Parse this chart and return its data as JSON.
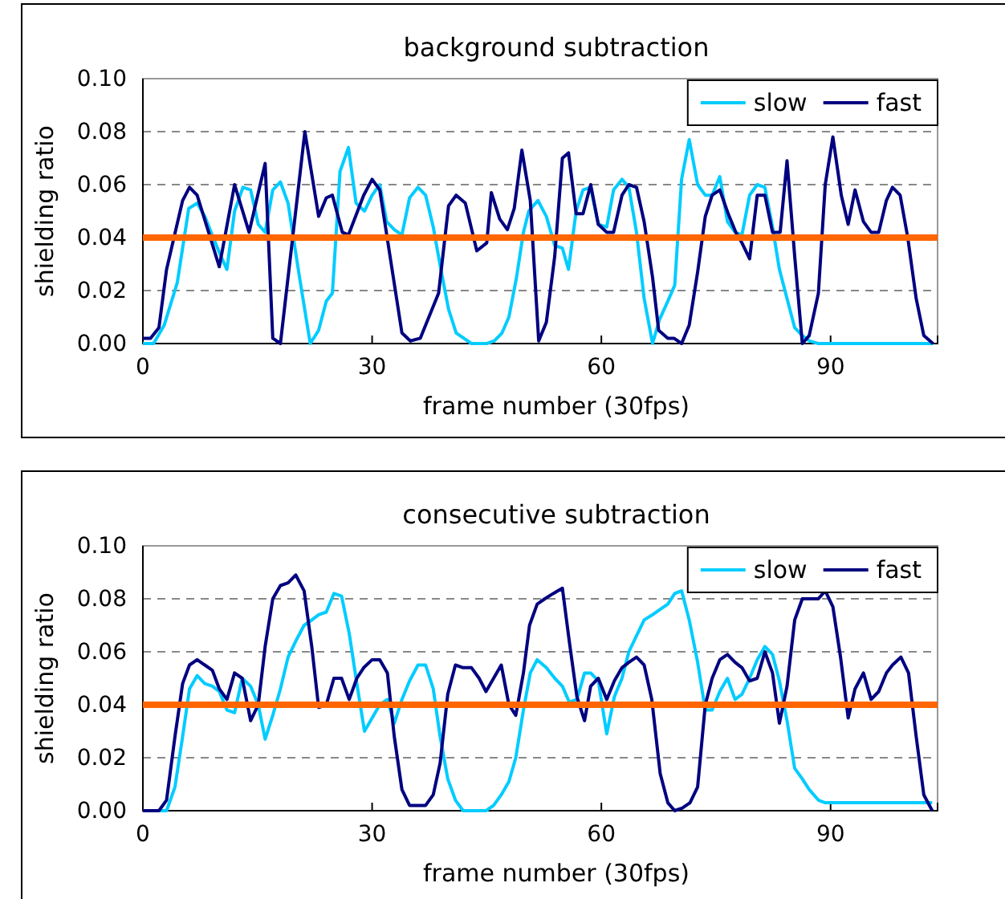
{
  "chart_data": [
    {
      "type": "line",
      "title": "background subtraction",
      "xlabel": "frame number (30fps)",
      "ylabel": "shielding ratio",
      "xlim": [
        0,
        104
      ],
      "xticks": [
        0,
        30,
        60,
        90
      ],
      "ylim": [
        0,
        0.1
      ],
      "yticks": [
        {
          "value": 0,
          "label": "0.00"
        },
        {
          "value": 0.02,
          "label": "0.02"
        },
        {
          "value": 0.04,
          "label": "0.04"
        },
        {
          "value": 0.06,
          "label": "0.06"
        },
        {
          "value": 0.08,
          "label": "0.08"
        },
        {
          "value": 0.1,
          "label": "0.10"
        }
      ],
      "grid": "y",
      "legend": "top right",
      "line_style": "solid",
      "marker": "none",
      "ref_lines": [
        {
          "axis": "y",
          "value": 0.04,
          "color": "#ff6600"
        }
      ],
      "series": [
        {
          "name": "slow",
          "color": "#00ccff",
          "x": [
            0,
            1.4,
            2.8,
            4.5,
            6,
            7.1,
            8.1,
            9.2,
            10.2,
            11,
            12,
            13.1,
            14.1,
            15.1,
            16,
            17,
            18,
            19,
            20.5,
            21.9,
            23,
            24,
            24.8,
            25.8,
            26.9,
            27.9,
            29,
            30,
            31,
            31.9,
            32.9,
            33.9,
            34.9,
            36,
            37,
            38,
            39,
            40,
            41,
            42,
            43,
            45,
            46,
            47,
            47.9,
            48.9,
            49.8,
            50.5,
            51.7,
            52.8,
            53.9,
            54.9,
            55.7,
            56.7,
            57.6,
            58.6,
            59.6,
            60.7,
            61.6,
            62.7,
            63.6,
            64.6,
            65.6,
            66.7,
            67.6,
            68.7,
            69.6,
            70.5,
            71.5,
            72.6,
            73.6,
            74.5,
            75.5,
            76.5,
            77.5,
            78.4,
            79.4,
            80.4,
            81.4,
            82.4,
            83.3,
            84.3,
            85.3,
            86.3,
            87.2,
            88.4,
            103.4
          ],
          "values": [
            0,
            0,
            0.007,
            0.023,
            0.051,
            0.053,
            0.048,
            0.04,
            0.033,
            0.028,
            0.05,
            0.059,
            0.058,
            0.045,
            0.042,
            0.058,
            0.061,
            0.053,
            0.025,
            0,
            0.005,
            0.016,
            0.019,
            0.065,
            0.074,
            0.053,
            0.05,
            0.056,
            0.06,
            0.046,
            0.043,
            0.041,
            0.055,
            0.059,
            0.056,
            0.044,
            0.028,
            0.013,
            0.004,
            0.002,
            0,
            0,
            0.001,
            0.004,
            0.01,
            0.025,
            0.042,
            0.05,
            0.054,
            0.048,
            0.037,
            0.036,
            0.028,
            0.05,
            0.058,
            0.059,
            0.045,
            0.044,
            0.058,
            0.062,
            0.059,
            0.042,
            0.017,
            0,
            0.009,
            0.016,
            0.022,
            0.062,
            0.077,
            0.06,
            0.056,
            0.056,
            0.063,
            0.046,
            0.042,
            0.041,
            0.056,
            0.06,
            0.059,
            0.044,
            0.028,
            0.017,
            0.006,
            0.003,
            0.001,
            0,
            0
          ]
        },
        {
          "name": "fast",
          "color": "#000080",
          "x": [
            0,
            1,
            2.1,
            3.1,
            5.2,
            6.1,
            7.1,
            10,
            12,
            13.9,
            16,
            17,
            18,
            21.2,
            23,
            24,
            24.8,
            26.1,
            26.9,
            28.9,
            30,
            31,
            33.9,
            35,
            36.3,
            38.7,
            40,
            41,
            42.2,
            43.7,
            45,
            45.6,
            46.7,
            47.7,
            48.6,
            49.6,
            50.7,
            51.8,
            52.8,
            53.9,
            54.9,
            55.7,
            56.7,
            57.6,
            58.6,
            59.6,
            60.7,
            61.6,
            62.7,
            63.6,
            64.6,
            65.6,
            66.7,
            67.5,
            68.7,
            69.5,
            70.5,
            71.5,
            72.6,
            73.6,
            74.5,
            75.5,
            76.6,
            77.6,
            78.4,
            79.4,
            80.4,
            81.4,
            82.4,
            83.4,
            84.3,
            85.3,
            86.3,
            87.2,
            88.4,
            89.3,
            90.3,
            91.4,
            92.3,
            93.2,
            94.3,
            95.3,
            96.3,
            97.3,
            98.1,
            99.1,
            100.1,
            101.2,
            102.2,
            103.4
          ],
          "values": [
            0.002,
            0.002,
            0.006,
            0.028,
            0.054,
            0.059,
            0.056,
            0.029,
            0.06,
            0.042,
            0.068,
            0.002,
            0,
            0.08,
            0.048,
            0.055,
            0.056,
            0.042,
            0.041,
            0.056,
            0.062,
            0.058,
            0.004,
            0.001,
            0.002,
            0.019,
            0.052,
            0.056,
            0.053,
            0.035,
            0.038,
            0.057,
            0.047,
            0.043,
            0.051,
            0.073,
            0.054,
            0.001,
            0.008,
            0.033,
            0.07,
            0.072,
            0.049,
            0.049,
            0.06,
            0.045,
            0.042,
            0.042,
            0.056,
            0.06,
            0.059,
            0.046,
            0.025,
            0.005,
            0.002,
            0.002,
            0,
            0.007,
            0.027,
            0.048,
            0.056,
            0.058,
            0.049,
            0.042,
            0.038,
            0.032,
            0.056,
            0.056,
            0.042,
            0.042,
            0.069,
            0.033,
            0,
            0.003,
            0.019,
            0.06,
            0.078,
            0.056,
            0.045,
            0.058,
            0.046,
            0.042,
            0.042,
            0.054,
            0.059,
            0.056,
            0.04,
            0.017,
            0.003,
            0
          ]
        }
      ]
    },
    {
      "type": "line",
      "title": "consecutive subtraction",
      "xlabel": "frame number (30fps)",
      "ylabel": "shielding ratio",
      "xlim": [
        0,
        104
      ],
      "xticks": [
        0,
        30,
        60,
        90
      ],
      "ylim": [
        0,
        0.1
      ],
      "yticks": [
        {
          "value": 0,
          "label": "0.00"
        },
        {
          "value": 0.02,
          "label": "0.02"
        },
        {
          "value": 0.04,
          "label": "0.04"
        },
        {
          "value": 0.06,
          "label": "0.06"
        },
        {
          "value": 0.08,
          "label": "0.08"
        },
        {
          "value": 0.1,
          "label": "0.10"
        }
      ],
      "grid": "y",
      "legend": "top right",
      "line_style": "solid",
      "marker": "none",
      "ref_lines": [
        {
          "axis": "y",
          "value": 0.04,
          "color": "#ff6600"
        }
      ],
      "series": [
        {
          "name": "slow",
          "color": "#00ccff",
          "x": [
            0,
            3.1,
            4.2,
            5.2,
            6.1,
            7.1,
            8.1,
            9.1,
            10,
            11,
            12,
            13,
            14.1,
            15.1,
            16,
            17,
            18,
            19,
            20,
            21.1,
            22.1,
            23,
            24,
            25,
            26,
            27,
            28,
            29,
            30,
            31,
            32,
            32.9,
            33.9,
            34.9,
            36,
            37,
            38,
            38.9,
            39.9,
            40.9,
            41.9,
            44.9,
            45.9,
            46.9,
            47.9,
            48.8,
            49.8,
            50.7,
            51.6,
            52.8,
            53.9,
            54.9,
            55.8,
            56.8,
            57.8,
            58.6,
            59.6,
            60.7,
            61.7,
            62.7,
            63.6,
            64.6,
            65.6,
            66.7,
            67.7,
            68.7,
            69.6,
            70.5,
            71.5,
            72.6,
            73.6,
            74.5,
            75.5,
            76.5,
            77.5,
            78.4,
            79.4,
            80.4,
            81.4,
            82.4,
            83.3,
            84.3,
            85.3,
            86.3,
            87.2,
            88.4,
            89.3,
            90.3,
            103.3
          ],
          "values": [
            0,
            0,
            0.009,
            0.028,
            0.046,
            0.051,
            0.048,
            0.047,
            0.045,
            0.038,
            0.037,
            0.05,
            0.047,
            0.04,
            0.027,
            0.036,
            0.046,
            0.058,
            0.064,
            0.07,
            0.072,
            0.074,
            0.075,
            0.082,
            0.081,
            0.067,
            0.048,
            0.03,
            0.035,
            0.04,
            0.042,
            0.033,
            0.042,
            0.049,
            0.055,
            0.055,
            0.046,
            0.028,
            0.012,
            0.004,
            0,
            0,
            0.002,
            0.006,
            0.011,
            0.02,
            0.038,
            0.052,
            0.057,
            0.054,
            0.05,
            0.047,
            0.041,
            0.042,
            0.052,
            0.052,
            0.049,
            0.029,
            0.043,
            0.05,
            0.06,
            0.066,
            0.072,
            0.074,
            0.076,
            0.078,
            0.082,
            0.083,
            0.072,
            0.056,
            0.038,
            0.038,
            0.045,
            0.05,
            0.042,
            0.044,
            0.05,
            0.057,
            0.062,
            0.059,
            0.049,
            0.034,
            0.016,
            0.012,
            0.008,
            0.004,
            0.003,
            0.003,
            0.003
          ]
        },
        {
          "name": "fast",
          "color": "#000080",
          "x": [
            0,
            2.1,
            3.1,
            4.2,
            5.2,
            6.1,
            7.1,
            8.1,
            9.1,
            10,
            11,
            12,
            13,
            14.1,
            15.1,
            16,
            17,
            18,
            19,
            20,
            21.1,
            22.1,
            23,
            24,
            25,
            26,
            27,
            28,
            28.9,
            30,
            31,
            32,
            32.9,
            33.9,
            34.9,
            36,
            37,
            38,
            38.9,
            39.9,
            40.9,
            41.9,
            43,
            44,
            44.9,
            45.9,
            46.9,
            47.9,
            48.8,
            49.8,
            50.6,
            51.6,
            52.6,
            53.7,
            54.9,
            55.8,
            56.8,
            57.8,
            58.6,
            59.6,
            60.7,
            61.7,
            62.7,
            63.6,
            64.6,
            65.6,
            66.6,
            67.7,
            68.7,
            69.6,
            70.6,
            71.6,
            72.6,
            73.6,
            74.5,
            75.5,
            76.5,
            77.5,
            78.4,
            79.4,
            80.4,
            81.4,
            82.4,
            83.3,
            84.3,
            85.3,
            86.3,
            87.2,
            88.4,
            89.3,
            90.3,
            91.3,
            92.3,
            93.2,
            94.3,
            95.3,
            96.3,
            97.3,
            98.1,
            99.2,
            100.2,
            101.2,
            102.2,
            103.3
          ],
          "values": [
            0,
            0,
            0.004,
            0.028,
            0.048,
            0.055,
            0.057,
            0.055,
            0.053,
            0.046,
            0.042,
            0.052,
            0.05,
            0.034,
            0.04,
            0.062,
            0.08,
            0.085,
            0.086,
            0.089,
            0.083,
            0.062,
            0.039,
            0.04,
            0.05,
            0.05,
            0.042,
            0.05,
            0.054,
            0.057,
            0.057,
            0.052,
            0.028,
            0.008,
            0.002,
            0.002,
            0.002,
            0.006,
            0.018,
            0.044,
            0.055,
            0.054,
            0.054,
            0.05,
            0.045,
            0.05,
            0.055,
            0.04,
            0.036,
            0.052,
            0.07,
            0.078,
            0.08,
            0.082,
            0.084,
            0.064,
            0.043,
            0.034,
            0.047,
            0.05,
            0.042,
            0.049,
            0.054,
            0.056,
            0.058,
            0.055,
            0.042,
            0.014,
            0.003,
            0,
            0.001,
            0.003,
            0.009,
            0.04,
            0.05,
            0.057,
            0.059,
            0.056,
            0.054,
            0.049,
            0.05,
            0.06,
            0.052,
            0.033,
            0.047,
            0.072,
            0.08,
            0.08,
            0.08,
            0.083,
            0.077,
            0.058,
            0.035,
            0.046,
            0.052,
            0.042,
            0.045,
            0.052,
            0.055,
            0.058,
            0.052,
            0.028,
            0.006,
            0
          ]
        }
      ]
    }
  ]
}
